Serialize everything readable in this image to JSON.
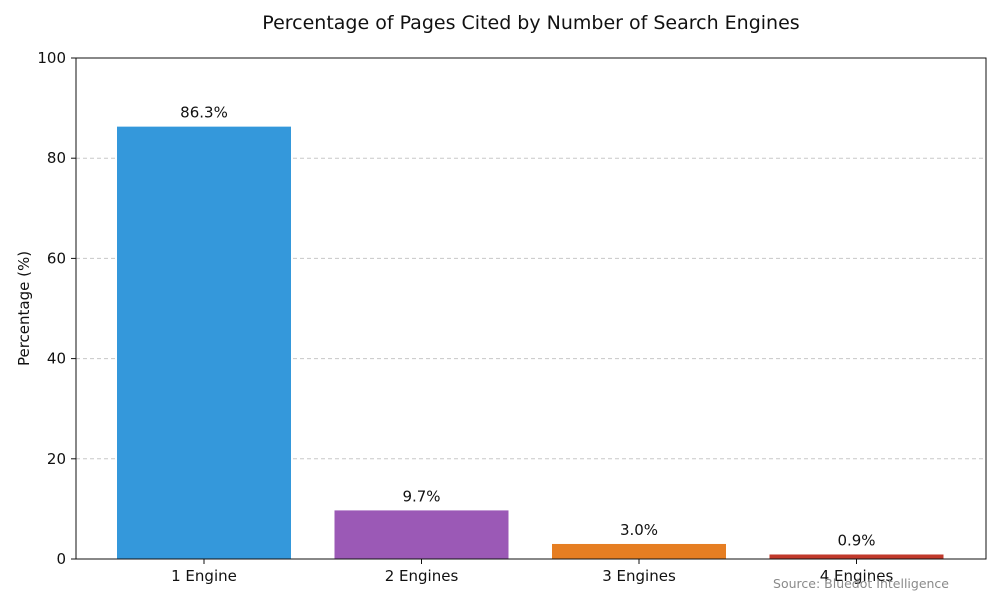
{
  "chart_data": {
    "type": "bar",
    "title": "Percentage of Pages Cited by Number of Search Engines",
    "xlabel": "",
    "ylabel": "Percentage (%)",
    "ylim": [
      0,
      100
    ],
    "yticks": [
      0,
      20,
      40,
      60,
      80,
      100
    ],
    "grid": "y-dashed",
    "categories": [
      "1 Engine",
      "2 Engines",
      "3 Engines",
      "4 Engines"
    ],
    "values": [
      86.3,
      9.7,
      3.0,
      0.9
    ],
    "data_labels": [
      "86.3%",
      "9.7%",
      "3.0%",
      "0.9%"
    ],
    "colors": [
      "#3498db",
      "#9b59b6",
      "#e67e22",
      "#c0392b"
    ],
    "source": "Source: Bluedot Intelligence"
  }
}
